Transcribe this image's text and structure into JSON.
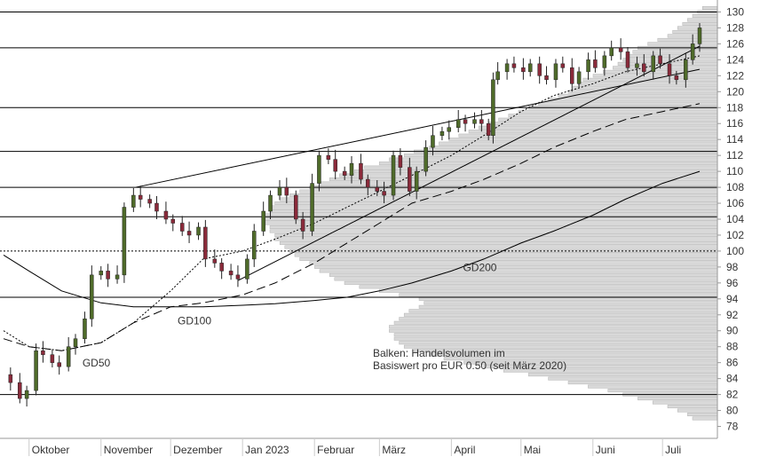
{
  "chart_data": {
    "type": "candlestick",
    "y_axis": {
      "min": 76.5,
      "max": 131.5,
      "ticks": [
        78,
        80,
        82,
        84,
        86,
        88,
        90,
        92,
        94,
        96,
        98,
        100,
        102,
        104,
        106,
        108,
        110,
        112,
        114,
        116,
        118,
        120,
        122,
        124,
        126,
        128,
        130
      ],
      "position": "right"
    },
    "x_axis": {
      "start": "2022-09-20",
      "end": "2023-07-17",
      "months": [
        {
          "label": "Oktober",
          "date": "2022-10-01"
        },
        {
          "label": "November",
          "date": "2022-11-01"
        },
        {
          "label": "Dezember",
          "date": "2022-12-01"
        },
        {
          "label": "Jan 2023",
          "date": "2023-01-01"
        },
        {
          "label": "Februar",
          "date": "2023-02-01"
        },
        {
          "label": "März",
          "date": "2023-03-01"
        },
        {
          "label": "April",
          "date": "2023-04-01"
        },
        {
          "label": "Mai",
          "date": "2023-05-01"
        },
        {
          "label": "Juni",
          "date": "2023-06-01"
        },
        {
          "label": "Juli",
          "date": "2023-07-01"
        }
      ]
    },
    "price_path": [
      [
        "2022-09-20",
        84.5
      ],
      [
        "2022-09-23",
        83.5
      ],
      [
        "2022-09-27",
        81.5
      ],
      [
        "2022-09-30",
        82.5
      ],
      [
        "2022-10-04",
        87.5
      ],
      [
        "2022-10-07",
        87.0
      ],
      [
        "2022-10-11",
        86.0
      ],
      [
        "2022-10-14",
        85.5
      ],
      [
        "2022-10-18",
        88.0
      ],
      [
        "2022-10-21",
        89.0
      ],
      [
        "2022-10-25",
        91.5
      ],
      [
        "2022-10-28",
        97.0
      ],
      [
        "2022-11-01",
        97.5
      ],
      [
        "2022-11-04",
        96.5
      ],
      [
        "2022-11-08",
        97.0
      ],
      [
        "2022-11-11",
        105.5
      ],
      [
        "2022-11-15",
        107.0
      ],
      [
        "2022-11-18",
        106.5
      ],
      [
        "2022-11-22",
        106.0
      ],
      [
        "2022-11-25",
        105.0
      ],
      [
        "2022-11-29",
        104.0
      ],
      [
        "2022-12-02",
        103.5
      ],
      [
        "2022-12-06",
        102.5
      ],
      [
        "2022-12-09",
        102.0
      ],
      [
        "2022-12-13",
        103.0
      ],
      [
        "2022-12-16",
        99.0
      ],
      [
        "2022-12-20",
        98.5
      ],
      [
        "2022-12-23",
        97.5
      ],
      [
        "2022-12-27",
        97.0
      ],
      [
        "2022-12-30",
        96.5
      ],
      [
        "2023-01-03",
        99.0
      ],
      [
        "2023-01-06",
        102.5
      ],
      [
        "2023-01-10",
        105.0
      ],
      [
        "2023-01-13",
        107.0
      ],
      [
        "2023-01-17",
        108.0
      ],
      [
        "2023-01-20",
        107.0
      ],
      [
        "2023-01-24",
        104.0
      ],
      [
        "2023-01-27",
        102.5
      ],
      [
        "2023-01-31",
        108.5
      ],
      [
        "2023-02-03",
        112.0
      ],
      [
        "2023-02-07",
        111.5
      ],
      [
        "2023-02-10",
        110.0
      ],
      [
        "2023-02-14",
        109.5
      ],
      [
        "2023-02-17",
        111.0
      ],
      [
        "2023-02-21",
        109.0
      ],
      [
        "2023-02-24",
        108.0
      ],
      [
        "2023-02-28",
        107.5
      ],
      [
        "2023-03-03",
        107.0
      ],
      [
        "2023-03-07",
        112.0
      ],
      [
        "2023-03-10",
        110.5
      ],
      [
        "2023-03-14",
        107.5
      ],
      [
        "2023-03-17",
        110.0
      ],
      [
        "2023-03-21",
        113.0
      ],
      [
        "2023-03-24",
        114.5
      ],
      [
        "2023-03-28",
        115.0
      ],
      [
        "2023-03-31",
        115.5
      ],
      [
        "2023-04-04",
        116.5
      ],
      [
        "2023-04-07",
        116.0
      ],
      [
        "2023-04-11",
        116.5
      ],
      [
        "2023-04-14",
        116.0
      ],
      [
        "2023-04-17",
        114.5
      ],
      [
        "2023-04-19",
        121.5
      ],
      [
        "2023-04-21",
        122.5
      ],
      [
        "2023-04-25",
        123.5
      ],
      [
        "2023-04-28",
        123.0
      ],
      [
        "2023-05-02",
        122.5
      ],
      [
        "2023-05-05",
        123.5
      ],
      [
        "2023-05-09",
        122.0
      ],
      [
        "2023-05-12",
        121.5
      ],
      [
        "2023-05-16",
        123.5
      ],
      [
        "2023-05-19",
        123.0
      ],
      [
        "2023-05-23",
        121.0
      ],
      [
        "2023-05-26",
        122.5
      ],
      [
        "2023-05-30",
        124.0
      ],
      [
        "2023-06-02",
        123.0
      ],
      [
        "2023-06-06",
        124.5
      ],
      [
        "2023-06-09",
        125.5
      ],
      [
        "2023-06-13",
        125.0
      ],
      [
        "2023-06-16",
        123.0
      ],
      [
        "2023-06-20",
        123.5
      ],
      [
        "2023-06-23",
        122.5
      ],
      [
        "2023-06-27",
        124.5
      ],
      [
        "2023-06-30",
        123.5
      ],
      [
        "2023-07-04",
        122.0
      ],
      [
        "2023-07-07",
        121.5
      ],
      [
        "2023-07-11",
        124.0
      ],
      [
        "2023-07-14",
        126.0
      ],
      [
        "2023-07-17",
        128.0
      ]
    ],
    "moving_averages": [
      {
        "name": "GD50",
        "style": "dotted",
        "points": [
          [
            "2022-09-20",
            90.0
          ],
          [
            "2022-10-01",
            88.0
          ],
          [
            "2022-10-15",
            87.5
          ],
          [
            "2022-11-01",
            88.5
          ],
          [
            "2022-11-15",
            91.0
          ],
          [
            "2022-12-01",
            95.0
          ],
          [
            "2022-12-15",
            99.0
          ],
          [
            "2023-01-01",
            100.0
          ],
          [
            "2023-01-15",
            101.5
          ],
          [
            "2023-02-01",
            103.5
          ],
          [
            "2023-02-15",
            105.5
          ],
          [
            "2023-03-01",
            107.5
          ],
          [
            "2023-03-15",
            109.5
          ],
          [
            "2023-04-01",
            112.0
          ],
          [
            "2023-04-15",
            114.5
          ],
          [
            "2023-05-01",
            117.5
          ],
          [
            "2023-05-15",
            119.5
          ],
          [
            "2023-06-01",
            121.0
          ],
          [
            "2023-06-15",
            122.5
          ],
          [
            "2023-07-01",
            123.5
          ],
          [
            "2023-07-17",
            124.5
          ]
        ]
      },
      {
        "name": "GD100",
        "style": "dashed",
        "points": [
          [
            "2022-09-20",
            89.0
          ],
          [
            "2022-10-01",
            88.0
          ],
          [
            "2022-10-15",
            87.5
          ],
          [
            "2022-11-01",
            88.5
          ],
          [
            "2022-11-15",
            91.0
          ],
          [
            "2022-12-01",
            93.0
          ],
          [
            "2022-12-15",
            93.5
          ],
          [
            "2023-01-01",
            94.5
          ],
          [
            "2023-01-15",
            96.0
          ],
          [
            "2023-02-01",
            98.5
          ],
          [
            "2023-02-15",
            101.0
          ],
          [
            "2023-03-01",
            103.5
          ],
          [
            "2023-03-15",
            106.0
          ],
          [
            "2023-04-01",
            107.5
          ],
          [
            "2023-04-15",
            109.0
          ],
          [
            "2023-05-01",
            111.0
          ],
          [
            "2023-05-15",
            113.0
          ],
          [
            "2023-06-01",
            115.0
          ],
          [
            "2023-06-15",
            116.5
          ],
          [
            "2023-07-01",
            117.5
          ],
          [
            "2023-07-17",
            118.5
          ]
        ]
      },
      {
        "name": "GD200",
        "style": "solid",
        "points": [
          [
            "2022-09-20",
            99.5
          ],
          [
            "2022-10-01",
            97.5
          ],
          [
            "2022-10-15",
            95.0
          ],
          [
            "2022-11-01",
            93.5
          ],
          [
            "2022-11-15",
            93.0
          ],
          [
            "2022-12-01",
            93.0
          ],
          [
            "2022-12-15",
            93.0
          ],
          [
            "2023-01-01",
            93.2
          ],
          [
            "2023-01-15",
            93.4
          ],
          [
            "2023-02-01",
            93.8
          ],
          [
            "2023-02-15",
            94.2
          ],
          [
            "2023-03-01",
            95.0
          ],
          [
            "2023-03-15",
            96.0
          ],
          [
            "2023-04-01",
            97.5
          ],
          [
            "2023-04-15",
            99.0
          ],
          [
            "2023-05-01",
            101.0
          ],
          [
            "2023-05-15",
            102.5
          ],
          [
            "2023-06-01",
            104.5
          ],
          [
            "2023-06-15",
            106.5
          ],
          [
            "2023-07-01",
            108.5
          ],
          [
            "2023-07-17",
            110.0
          ]
        ]
      }
    ],
    "ma_labels": [
      {
        "text": "GD50",
        "date": "2022-10-24",
        "y": 85.5
      },
      {
        "text": "GD100",
        "date": "2022-12-04",
        "y": 90.8
      },
      {
        "text": "GD200",
        "date": "2023-04-06",
        "y": 97.5
      }
    ],
    "horizontal_levels": [
      130,
      125.5,
      118,
      112.5,
      108,
      104.3,
      100,
      94.2,
      82
    ],
    "dotted_levels": [
      100
    ],
    "trend_lines": [
      [
        [
          "2022-11-16",
          108.0
        ],
        [
          "2023-07-17",
          122.8
        ]
      ],
      [
        [
          "2022-12-30",
          96.3
        ],
        [
          "2023-07-17",
          125.7
        ]
      ]
    ],
    "volume_profile": {
      "note_lines": [
        "Balken: Handelsvolumen im",
        "Basiswert pro EUR 0.50 (seit März 2020)"
      ],
      "bins": [
        [
          79.0,
          5
        ],
        [
          79.5,
          6
        ],
        [
          80.0,
          8
        ],
        [
          80.5,
          10
        ],
        [
          81.0,
          13
        ],
        [
          81.5,
          16
        ],
        [
          82.0,
          19
        ],
        [
          82.5,
          22
        ],
        [
          83.0,
          26
        ],
        [
          83.5,
          30
        ],
        [
          84.0,
          34
        ],
        [
          84.5,
          38
        ],
        [
          85.0,
          43
        ],
        [
          85.5,
          47
        ],
        [
          86.0,
          51
        ],
        [
          86.5,
          55
        ],
        [
          87.0,
          58
        ],
        [
          87.5,
          61
        ],
        [
          88.0,
          63
        ],
        [
          88.5,
          64
        ],
        [
          89.0,
          65
        ],
        [
          89.5,
          65
        ],
        [
          90.0,
          66
        ],
        [
          90.5,
          66
        ],
        [
          91.0,
          65
        ],
        [
          91.5,
          64
        ],
        [
          92.0,
          63
        ],
        [
          92.5,
          62
        ],
        [
          93.0,
          60
        ],
        [
          93.5,
          59
        ],
        [
          94.0,
          60
        ],
        [
          94.5,
          64
        ],
        [
          95.0,
          68
        ],
        [
          95.5,
          72
        ],
        [
          96.0,
          75
        ],
        [
          96.5,
          77
        ],
        [
          97.0,
          78
        ],
        [
          97.5,
          80
        ],
        [
          98.0,
          81
        ],
        [
          98.5,
          82
        ],
        [
          99.0,
          84
        ],
        [
          99.5,
          85
        ],
        [
          100.0,
          86
        ],
        [
          100.5,
          87
        ],
        [
          101.0,
          88
        ],
        [
          101.5,
          89
        ],
        [
          102.0,
          89
        ],
        [
          102.5,
          90
        ],
        [
          103.0,
          90
        ],
        [
          103.5,
          91
        ],
        [
          104.0,
          91
        ],
        [
          104.5,
          91
        ],
        [
          105.0,
          90
        ],
        [
          105.5,
          90
        ],
        [
          106.0,
          89
        ],
        [
          106.5,
          88
        ],
        [
          107.0,
          86
        ],
        [
          107.5,
          84
        ],
        [
          108.0,
          82
        ],
        [
          108.5,
          80
        ],
        [
          109.0,
          78
        ],
        [
          109.5,
          76
        ],
        [
          110.0,
          73
        ],
        [
          110.5,
          71
        ],
        [
          111.0,
          68
        ],
        [
          111.5,
          66
        ],
        [
          112.0,
          63
        ],
        [
          112.5,
          61
        ],
        [
          113.0,
          58
        ],
        [
          113.5,
          56
        ],
        [
          114.0,
          54
        ],
        [
          114.5,
          52
        ],
        [
          115.0,
          50
        ],
        [
          115.5,
          48
        ],
        [
          116.0,
          46
        ],
        [
          116.5,
          44
        ],
        [
          117.0,
          42
        ],
        [
          117.5,
          40
        ],
        [
          118.0,
          38
        ],
        [
          118.5,
          36
        ],
        [
          119.0,
          34
        ],
        [
          119.5,
          32
        ],
        [
          120.0,
          30
        ],
        [
          120.5,
          29
        ],
        [
          121.0,
          28
        ],
        [
          121.5,
          27
        ],
        [
          122.0,
          25
        ],
        [
          122.5,
          23
        ],
        [
          123.0,
          21
        ],
        [
          123.5,
          20
        ],
        [
          124.0,
          19
        ],
        [
          124.5,
          18
        ],
        [
          125.0,
          17
        ],
        [
          125.5,
          16
        ],
        [
          126.0,
          14
        ],
        [
          126.5,
          12
        ],
        [
          127.0,
          10
        ],
        [
          127.5,
          9
        ],
        [
          128.0,
          8
        ],
        [
          128.5,
          7
        ],
        [
          129.0,
          6
        ],
        [
          129.5,
          5
        ],
        [
          130.0,
          4
        ],
        [
          130.5,
          3
        ]
      ]
    }
  }
}
